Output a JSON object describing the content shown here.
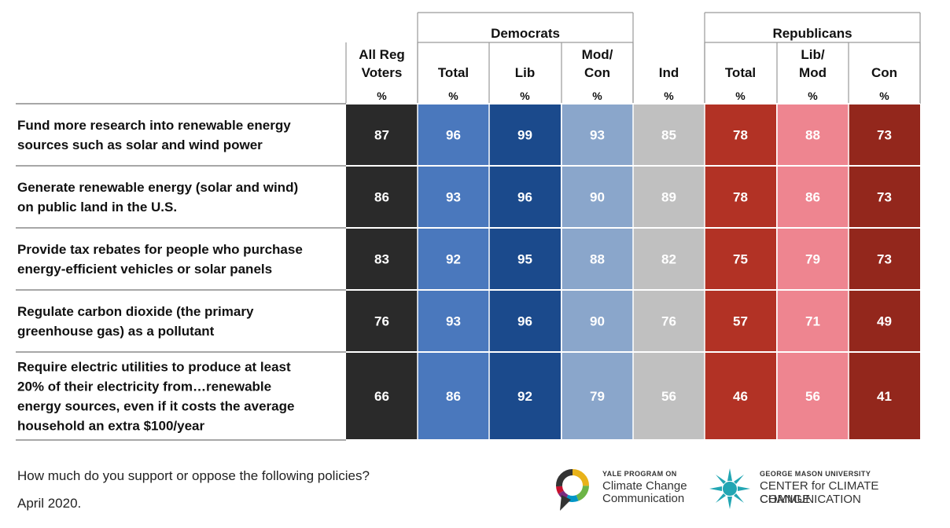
{
  "chart_data": {
    "type": "table",
    "groups": [
      {
        "label": "Democrats"
      },
      {
        "label": "Republicans"
      }
    ],
    "columns": [
      {
        "label": [
          "All Reg",
          "Voters"
        ],
        "unit": "%",
        "color": "#2a2a2a"
      },
      {
        "label": [
          "Total"
        ],
        "unit": "%",
        "color": "#4a78bd"
      },
      {
        "label": [
          "Lib"
        ],
        "unit": "%",
        "color": "#1b4a8c"
      },
      {
        "label": [
          "Mod/",
          "Con"
        ],
        "unit": "%",
        "color": "#8aa6cb"
      },
      {
        "label": [
          "Ind"
        ],
        "unit": "%",
        "color": "#c0c0c0"
      },
      {
        "label": [
          "Total"
        ],
        "unit": "%",
        "color": "#b23225"
      },
      {
        "label": [
          "Lib/",
          "Mod"
        ],
        "unit": "%",
        "color": "#ee8590"
      },
      {
        "label": [
          "Con"
        ],
        "unit": "%",
        "color": "#93271c"
      }
    ],
    "rows": [
      {
        "label": [
          "Fund more research into renewable energy",
          "sources such as solar and wind power"
        ],
        "values": [
          87,
          96,
          99,
          93,
          85,
          78,
          88,
          73
        ]
      },
      {
        "label": [
          "Generate renewable energy (solar and wind)",
          "on public land in the U.S."
        ],
        "values": [
          86,
          93,
          96,
          90,
          89,
          78,
          86,
          73
        ]
      },
      {
        "label": [
          "Provide tax rebates for people who purchase",
          "energy-efficient vehicles or solar panels"
        ],
        "values": [
          83,
          92,
          95,
          88,
          82,
          75,
          79,
          73
        ]
      },
      {
        "label": [
          "Regulate carbon dioxide (the primary",
          "greenhouse gas) as a pollutant"
        ],
        "values": [
          76,
          93,
          96,
          90,
          76,
          57,
          71,
          49
        ]
      },
      {
        "label": [
          "Require electric utilities to produce at least",
          "20% of their electricity from…renewable",
          "energy sources, even if it costs the average",
          "household an extra $100/year"
        ],
        "values": [
          66,
          86,
          92,
          79,
          56,
          46,
          56,
          41
        ]
      }
    ]
  },
  "footer": {
    "question": "How much do you support or oppose the following policies?",
    "date": "April 2020."
  },
  "logos": {
    "yale": {
      "small": "YALE PROGRAM ON",
      "line1": "Climate Change",
      "line2": "Communication"
    },
    "gmu": {
      "small": "GEORGE MASON UNIVERSITY",
      "line1": "CENTER for CLIMATE CHANGE",
      "line2": "COMMUNICATION"
    }
  }
}
